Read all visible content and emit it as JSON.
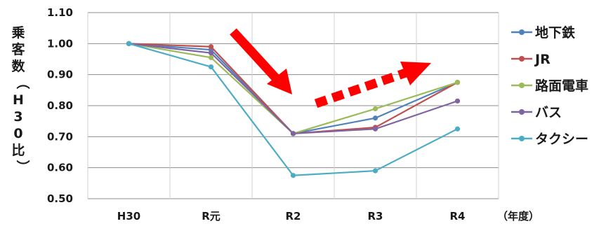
{
  "chart_data": {
    "type": "line",
    "categories": [
      "H30",
      "R元",
      "R2",
      "R3",
      "R4"
    ],
    "xunit": "（年度）",
    "ylabel": "乗客数（H30比）",
    "ylim": [
      0.5,
      1.1
    ],
    "yticks": [
      "1.10",
      "1.00",
      "0.90",
      "0.80",
      "0.70",
      "0.60",
      "0.50"
    ],
    "grid": "horizontal",
    "legend_position": "right",
    "series": [
      {
        "name": "地下鉄",
        "color": "#4f81bd",
        "values": [
          1.0,
          0.98,
          0.71,
          0.76,
          0.875
        ]
      },
      {
        "name": "JR",
        "color": "#c0504d",
        "values": [
          1.0,
          0.99,
          0.71,
          0.73,
          0.875
        ]
      },
      {
        "name": "路面電車",
        "color": "#9bbb59",
        "values": [
          1.0,
          0.955,
          0.71,
          0.79,
          0.875
        ]
      },
      {
        "name": "バス",
        "color": "#8064a2",
        "values": [
          1.0,
          0.97,
          0.71,
          0.725,
          0.815
        ]
      },
      {
        "name": "タクシー",
        "color": "#4bacc6",
        "values": [
          1.0,
          0.925,
          0.575,
          0.59,
          0.725
        ]
      }
    ],
    "annotations": [
      {
        "type": "solid-arrow",
        "description": "decline",
        "color": "#ff0000"
      },
      {
        "type": "dashed-arrow",
        "description": "recovery",
        "color": "#ff0000"
      }
    ]
  }
}
